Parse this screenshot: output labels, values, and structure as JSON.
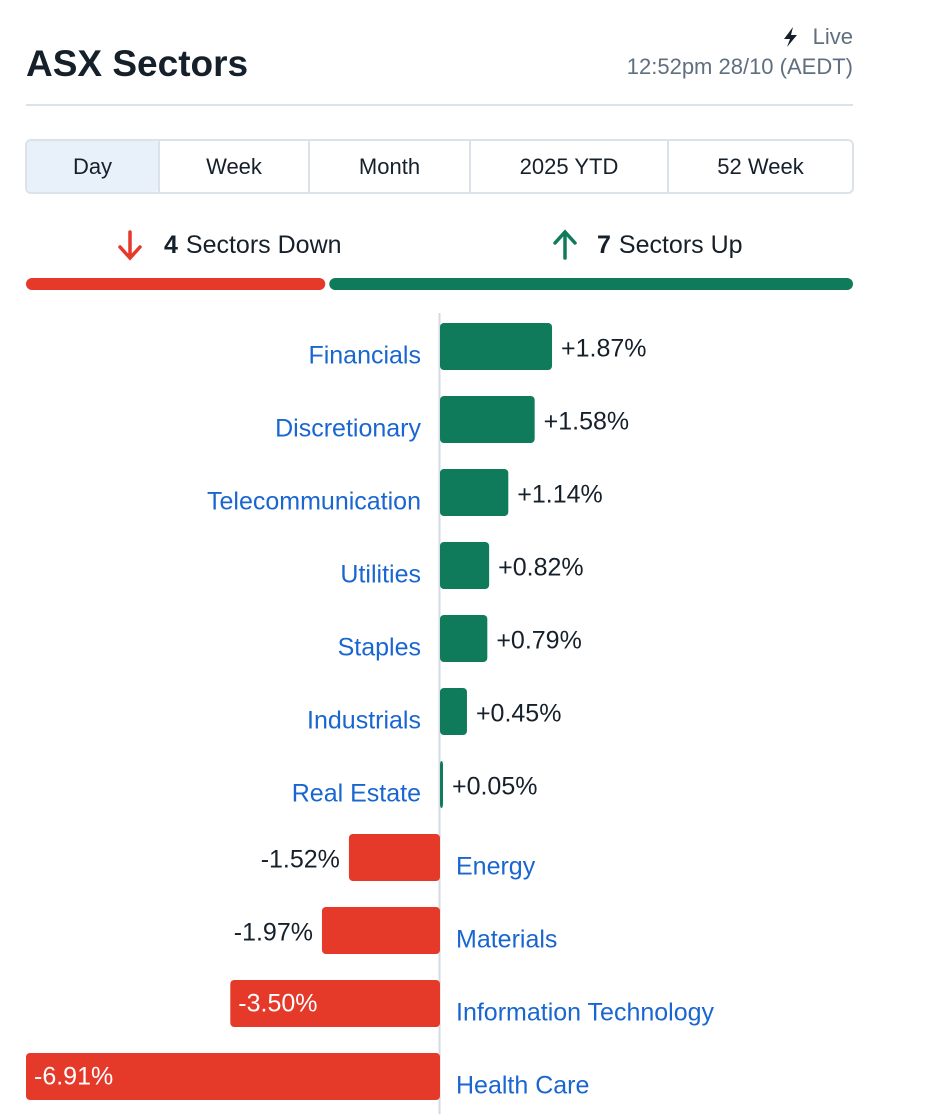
{
  "header": {
    "title": "ASX Sectors",
    "live": "Live",
    "timestamp": "12:52pm 28/10 (AEDT)"
  },
  "tabs": [
    "Day",
    "Week",
    "Month",
    "2025 YTD",
    "52 Week"
  ],
  "selected_tab": "Day",
  "summary": {
    "down_count": 4,
    "down_label": "Sectors Down",
    "up_count": 7,
    "up_label": "Sectors Up",
    "color_down": "#e5392a",
    "color_up": "#0f7b5a"
  },
  "chart_data": {
    "type": "bar",
    "orientation": "horizontal",
    "categories": [
      "Financials",
      "Discretionary",
      "Telecommunication",
      "Utilities",
      "Staples",
      "Industrials",
      "Real Estate",
      "Energy",
      "Materials",
      "Information Technology",
      "Health Care"
    ],
    "values": [
      1.87,
      1.58,
      1.14,
      0.82,
      0.79,
      0.45,
      0.05,
      -1.52,
      -1.97,
      -3.5,
      -6.91
    ],
    "value_labels": [
      "+1.87%",
      "+1.58%",
      "+1.14%",
      "+0.82%",
      "+0.79%",
      "+0.45%",
      "+0.05%",
      "-1.52%",
      "-1.97%",
      "-3.50%",
      "-6.91%"
    ],
    "color_up": "#0f7b5a",
    "color_down": "#e5392a"
  }
}
